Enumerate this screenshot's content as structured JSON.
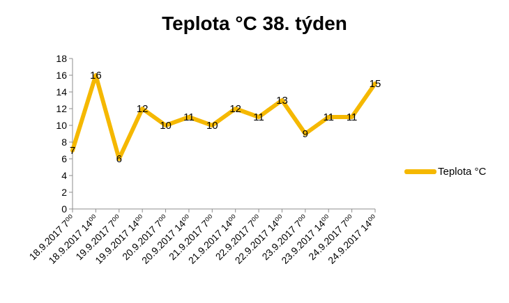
{
  "chart_data": {
    "type": "line",
    "title": "Teplota °C 38. týden",
    "categories": [
      "18.9.2017 7⁰⁰",
      "18.9.2017 14⁰⁰",
      "19.9.2017 7⁰⁰",
      "19.9.2017 14⁰⁰",
      "20.9.2017 7⁰⁰",
      "20.9.2017 14⁰⁰",
      "21.9.2017 7⁰⁰",
      "21.9.2017 14⁰⁰",
      "22.9.2017 7⁰⁰",
      "22.9.2017 14⁰⁰",
      "23.9.2017 7⁰⁰",
      "23.9.2017 14⁰⁰",
      "24.9.2017 7⁰⁰",
      "24.9.2017 14⁰⁰"
    ],
    "series": [
      {
        "name": "Teplota °C",
        "values": [
          7,
          16,
          6,
          12,
          10,
          11,
          10,
          12,
          11,
          13,
          9,
          11,
          11,
          15
        ]
      }
    ],
    "ylim": [
      0,
      18
    ],
    "yticks": [
      0,
      2,
      4,
      6,
      8,
      10,
      12,
      14,
      16,
      18
    ],
    "grid": false,
    "legend_position": "right",
    "color": "#F5B800"
  }
}
